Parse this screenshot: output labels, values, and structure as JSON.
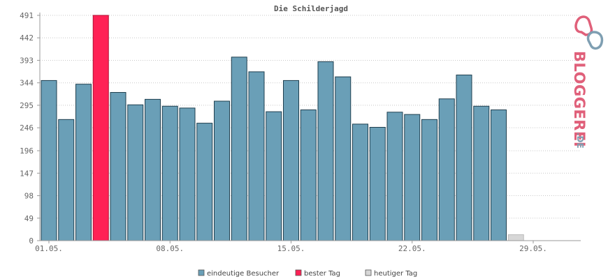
{
  "chart_data": {
    "type": "bar",
    "title": "Die Schilderjagd",
    "y_ticks": [
      "0",
      "49",
      "98",
      "147",
      "196",
      "246",
      "295",
      "344",
      "393",
      "442",
      "491"
    ],
    "ylim": [
      0,
      491
    ],
    "x_ticks": [
      "01.05.",
      "08.05.",
      "15.05.",
      "22.05.",
      "29.05."
    ],
    "x_tick_indices": [
      1,
      8,
      15,
      22,
      29
    ],
    "day_count": 31,
    "values": [
      349,
      264,
      341,
      491,
      323,
      296,
      308,
      293,
      289,
      256,
      304,
      400,
      368,
      281,
      349,
      285,
      390,
      357,
      254,
      247,
      280,
      275,
      264,
      309,
      361,
      293,
      285,
      13,
      0,
      0,
      0
    ],
    "best_index": 3,
    "today_index": 27,
    "colors": {
      "series": "#6a9fb7",
      "best": "#ff2155",
      "today": "#d7d7d7"
    },
    "grid": true,
    "legend_position": "bottom-center",
    "legend": [
      {
        "label": "eindeutige Besucher",
        "color": "#6a9fb7"
      },
      {
        "label": "bester Tag",
        "color": "#ff2155"
      },
      {
        "label": "heutiger Tag",
        "color": "#d7d7d7"
      }
    ]
  },
  "logo": {
    "name": "BLOGGEREI",
    "suffix": ".DE"
  }
}
